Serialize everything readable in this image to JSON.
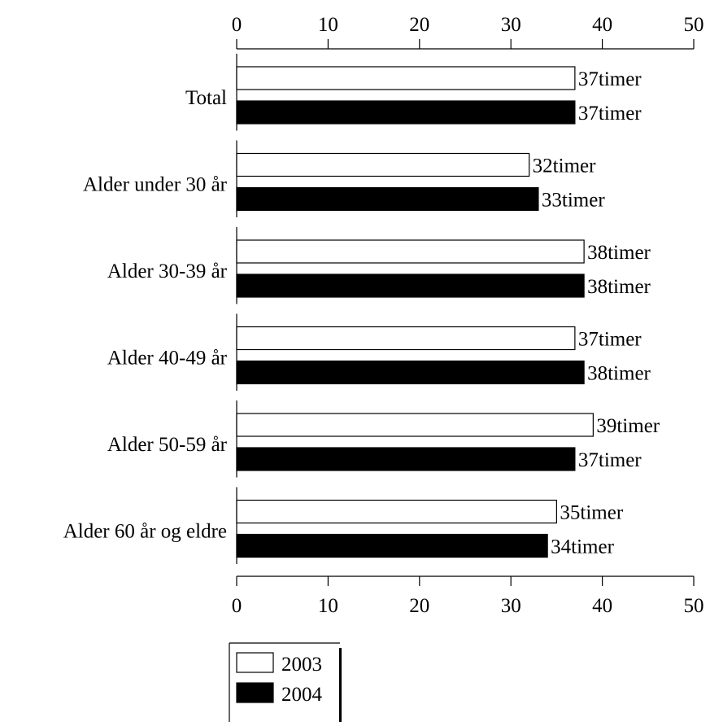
{
  "chart_data": {
    "type": "bar",
    "orientation": "horizontal",
    "categories": [
      "Total",
      "Alder under 30 år",
      "Alder 30-39 år",
      "Alder 40-49 år",
      "Alder 50-59 år",
      "Alder 60 år og eldre"
    ],
    "series": [
      {
        "name": "2003",
        "values": [
          37,
          32,
          38,
          37,
          39,
          35
        ],
        "color": "#ffffff"
      },
      {
        "name": "2004",
        "values": [
          37,
          33,
          38,
          38,
          37,
          34
        ],
        "color": "#000000"
      }
    ],
    "value_suffix": "timer",
    "xlim": [
      0,
      50
    ],
    "xticks": [
      0,
      10,
      20,
      30,
      40,
      50
    ],
    "xaxis_top": true,
    "xaxis_bottom": true,
    "grid": false,
    "legend_position": "bottom-left"
  }
}
